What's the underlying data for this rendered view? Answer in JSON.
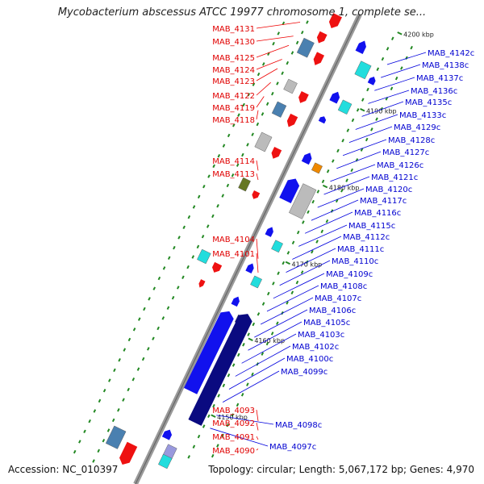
{
  "title": "Mycobacterium abscessus ATCC 19977 chromosome 1, complete se... ",
  "footer": {
    "accession": "Accession: NC_010397",
    "topology": "Topology: circular; Length: 5,067,172 bp; Genes: 4,970"
  },
  "colors": {
    "forward_gene": "#ee1111",
    "reverse_gene": "#1111ee",
    "reverse_dark": "#0a0a80",
    "cyan_feature": "#22dddd",
    "steel_feature": "#4a80b0",
    "grey_feature": "#bbbbbb",
    "orange_feature": "#ee8800",
    "olive_feature": "#667722",
    "lavender_feature": "#9999dd",
    "backbone": "#999999",
    "dot": "#228822"
  },
  "scale_ticks": [
    "4140 kbp",
    "4150 kbp",
    "4160 kbp",
    "4170 kbp",
    "4180 kbp",
    "4190 kbp",
    "4200 kbp"
  ],
  "labels_left": [
    "MAB_4131",
    "MAB_4130",
    "MAB_4125",
    "MAB_4124",
    "MAB_4123",
    "MAB_4122",
    "MAB_4119",
    "MAB_4118",
    "MAB_4114",
    "MAB_4113",
    "MAB_4104",
    "MAB_4101",
    "MAB_4093",
    "MAB_4092",
    "MAB_4091",
    "MAB_4090"
  ],
  "labels_right": [
    "MAB_4142c",
    "MAB_4138c",
    "MAB_4137c",
    "MAB_4136c",
    "MAB_4135c",
    "MAB_4133c",
    "MAB_4129c",
    "MAB_4128c",
    "MAB_4127c",
    "MAB_4126c",
    "MAB_4121c",
    "MAB_4120c",
    "MAB_4117c",
    "MAB_4116c",
    "MAB_4115c",
    "MAB_4112c",
    "MAB_4111c",
    "MAB_4110c",
    "MAB_4109c",
    "MAB_4108c",
    "MAB_4107c",
    "MAB_4106c",
    "MAB_4105c",
    "MAB_4103c",
    "MAB_4102c",
    "MAB_4100c",
    "MAB_4099c",
    "MAB_4098c",
    "MAB_4097c"
  ]
}
